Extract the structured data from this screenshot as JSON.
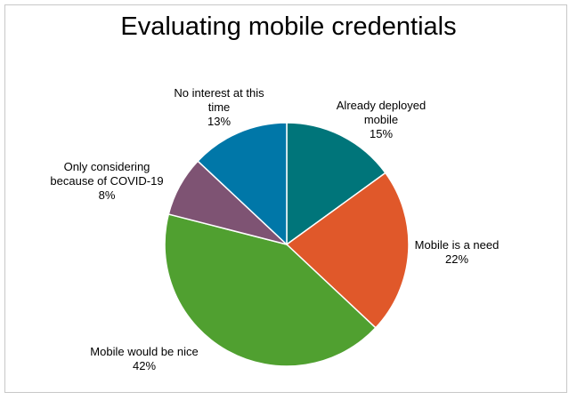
{
  "chart_data": {
    "type": "pie",
    "title": "Evaluating mobile credentials",
    "categories": [
      "Already deployed mobile",
      "Mobile is a need",
      "Mobile would be nice",
      "Only considering because of COVID-19",
      "No interest at this time"
    ],
    "values": [
      15,
      22,
      42,
      8,
      13
    ],
    "value_labels": [
      "15%",
      "22%",
      "42%",
      "8%",
      "13%"
    ],
    "colors": [
      "#00757a",
      "#e0582a",
      "#50a030",
      "#7e5373",
      "#0077a8"
    ]
  }
}
